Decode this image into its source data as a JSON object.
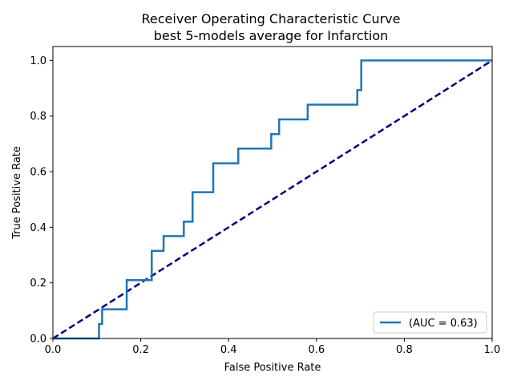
{
  "chart_data": {
    "type": "line",
    "title_line1": "Receiver Operating Characteristic Curve",
    "title_line2": "best 5-models average for Infarction",
    "xlabel": "False Positive Rate",
    "ylabel": "True Positive Rate",
    "xlim": [
      0.0,
      1.0
    ],
    "ylim": [
      0.0,
      1.05
    ],
    "xticks": [
      "0.0",
      "0.2",
      "0.4",
      "0.6",
      "0.8",
      "1.0"
    ],
    "yticks": [
      "0.0",
      "0.2",
      "0.4",
      "0.6",
      "0.8",
      "1.0"
    ],
    "grid": false,
    "legend_position": "lower-right",
    "series": [
      {
        "name": "(AUC = 0.63)",
        "color": "#1f77b4",
        "style": "solid",
        "x": [
          0.0,
          0.105,
          0.105,
          0.112,
          0.112,
          0.168,
          0.168,
          0.225,
          0.225,
          0.252,
          0.252,
          0.298,
          0.298,
          0.318,
          0.318,
          0.365,
          0.365,
          0.422,
          0.422,
          0.497,
          0.497,
          0.515,
          0.515,
          0.58,
          0.58,
          0.693,
          0.693,
          0.702,
          0.702,
          1.0
        ],
        "y": [
          0.0,
          0.0,
          0.052,
          0.052,
          0.105,
          0.105,
          0.21,
          0.21,
          0.315,
          0.315,
          0.368,
          0.368,
          0.42,
          0.42,
          0.526,
          0.526,
          0.63,
          0.63,
          0.683,
          0.683,
          0.735,
          0.735,
          0.788,
          0.788,
          0.841,
          0.841,
          0.893,
          0.893,
          1.0,
          1.0
        ]
      },
      {
        "name": "",
        "color": "#000080",
        "style": "dashed",
        "x": [
          0.0,
          1.0
        ],
        "y": [
          0.0,
          1.0
        ]
      }
    ]
  }
}
